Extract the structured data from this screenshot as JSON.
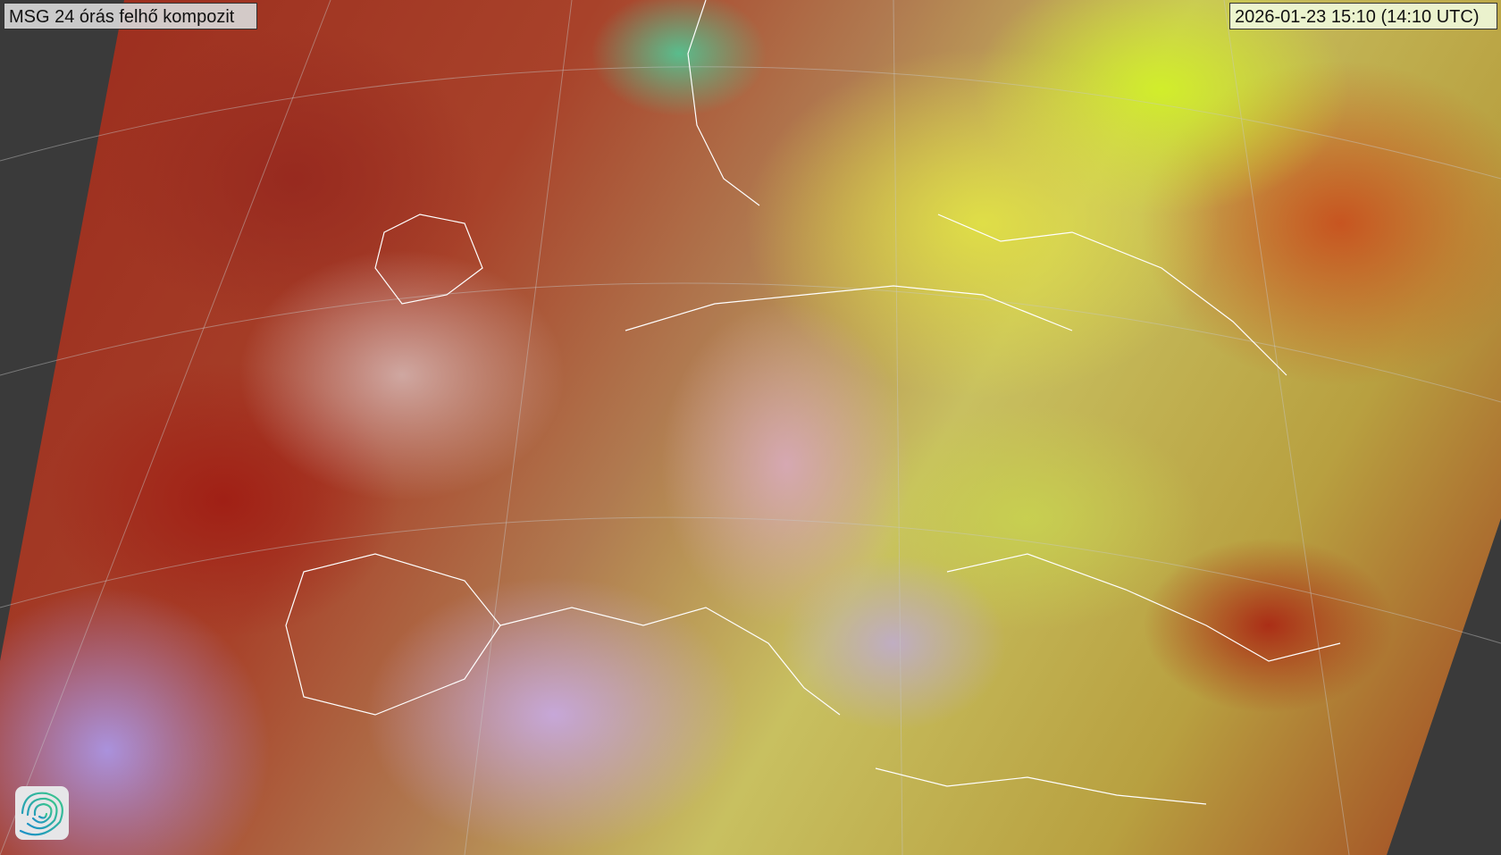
{
  "header": {
    "title": "MSG 24 órás felhő kompozit",
    "timestamp": "2026-01-23 15:10 (14:10 UTC)"
  },
  "map": {
    "product": "satellite-cloud-composite",
    "colors": {
      "thick_cloud": "#a0281c",
      "ice_cloud": "#d4e040",
      "low_cloud": "#c8b0e0",
      "sea": "#70d0b0",
      "background": "#3a3a3a"
    }
  },
  "logo": {
    "icon": "spiral-logo-icon"
  }
}
